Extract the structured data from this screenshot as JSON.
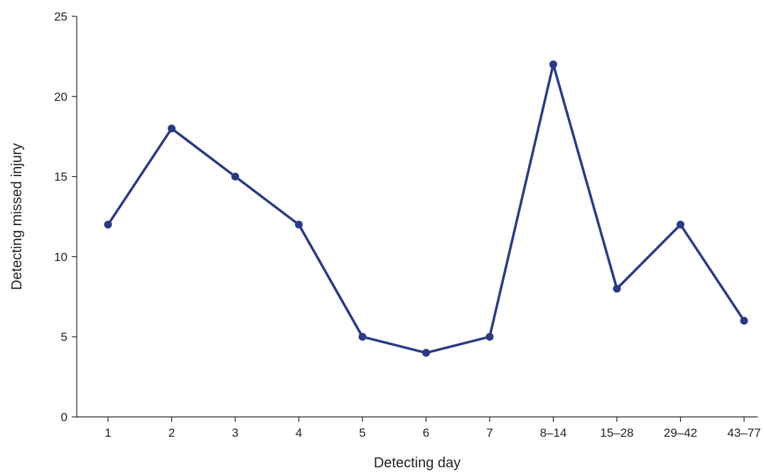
{
  "chart_data": {
    "type": "line",
    "title": "",
    "xlabel": "Detecting day",
    "ylabel": "Detecting missed injury",
    "categories": [
      "1",
      "2",
      "3",
      "4",
      "5",
      "6",
      "7",
      "8–14",
      "15–28",
      "29–42",
      "43–77"
    ],
    "series": [
      {
        "values": [
          12,
          18,
          15,
          12,
          5,
          4,
          5,
          22,
          8,
          12,
          6
        ]
      }
    ],
    "ylim": [
      0,
      25
    ],
    "yticks": [
      0,
      5,
      10,
      15,
      20,
      25
    ],
    "grid": false,
    "legend": "none"
  },
  "colors": {
    "series": "#2b3a85",
    "axis": "#222222"
  }
}
